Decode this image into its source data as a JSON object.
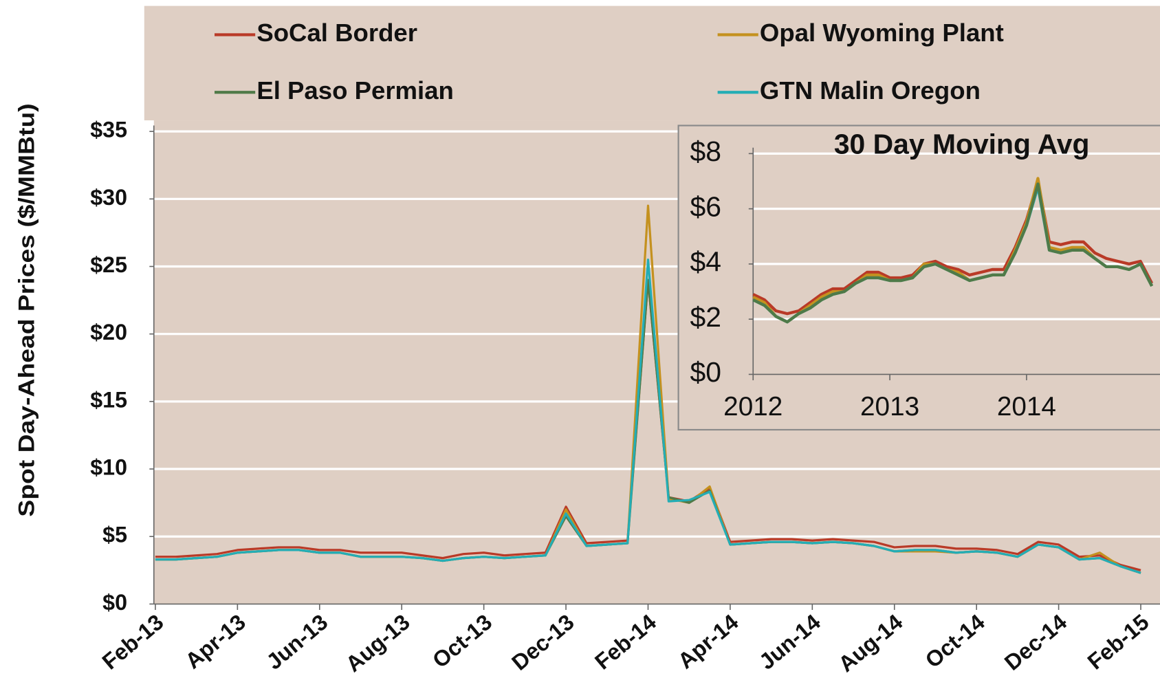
{
  "chart_data": [
    {
      "type": "line",
      "y_label": "Spot Day-Ahead Prices ($/MMBtu)",
      "categories": [
        "Feb-13",
        null,
        null,
        null,
        "Apr-13",
        null,
        null,
        null,
        "Jun-13",
        null,
        null,
        null,
        "Aug-13",
        null,
        null,
        null,
        "Oct-13",
        null,
        null,
        null,
        "Dec-13",
        null,
        null,
        null,
        "Feb-14",
        null,
        null,
        null,
        "Apr-14",
        null,
        null,
        null,
        "Jun-14",
        null,
        null,
        null,
        "Aug-14",
        null,
        null,
        null,
        "Oct-14",
        null,
        null,
        null,
        "Dec-14",
        null,
        null,
        null,
        "Feb-15"
      ],
      "ylim": [
        0,
        35
      ],
      "yticks": [
        {
          "value": 0,
          "label": "$0"
        },
        {
          "value": 5,
          "label": "$5"
        },
        {
          "value": 10,
          "label": "$10"
        },
        {
          "value": 15,
          "label": "$15"
        },
        {
          "value": 20,
          "label": "$20"
        },
        {
          "value": 25,
          "label": "$25"
        },
        {
          "value": 30,
          "label": "$30"
        },
        {
          "value": 35,
          "label": "$35"
        }
      ],
      "grid": true,
      "legend": "top",
      "series": [
        {
          "name": "SoCal Border",
          "color": "#b93a27",
          "values": [
            3.5,
            3.5,
            3.6,
            3.7,
            4.0,
            4.1,
            4.2,
            4.2,
            4.0,
            4.0,
            3.8,
            3.8,
            3.8,
            3.6,
            3.4,
            3.7,
            3.8,
            3.6,
            3.7,
            3.8,
            7.2,
            4.5,
            4.6,
            4.7,
            24.0,
            7.9,
            7.6,
            8.6,
            4.6,
            4.7,
            4.8,
            4.8,
            4.7,
            4.8,
            4.7,
            4.6,
            4.2,
            4.3,
            4.3,
            4.1,
            4.1,
            4.0,
            3.7,
            4.6,
            4.4,
            3.5,
            3.6,
            2.9,
            2.5
          ]
        },
        {
          "name": "Opal Wyoming Plant",
          "color": "#c4911f",
          "values": [
            3.3,
            3.3,
            3.4,
            3.5,
            3.8,
            3.9,
            4.0,
            4.0,
            3.8,
            3.8,
            3.5,
            3.5,
            3.5,
            3.4,
            3.2,
            3.4,
            3.5,
            3.4,
            3.5,
            3.6,
            7.0,
            4.3,
            4.4,
            4.5,
            29.5,
            7.8,
            7.5,
            8.7,
            4.4,
            4.5,
            4.6,
            4.6,
            4.5,
            4.6,
            4.5,
            4.3,
            3.9,
            3.9,
            3.9,
            3.8,
            3.9,
            3.8,
            3.5,
            4.4,
            4.2,
            3.3,
            3.8,
            2.8,
            2.3
          ]
        },
        {
          "name": "El Paso Permian",
          "color": "#4f7a48",
          "values": [
            3.3,
            3.3,
            3.4,
            3.5,
            3.8,
            3.9,
            4.0,
            4.0,
            3.8,
            3.8,
            3.5,
            3.5,
            3.5,
            3.4,
            3.2,
            3.4,
            3.5,
            3.4,
            3.5,
            3.6,
            6.5,
            4.3,
            4.4,
            4.5,
            24.0,
            7.9,
            7.5,
            8.4,
            4.4,
            4.5,
            4.6,
            4.6,
            4.5,
            4.6,
            4.5,
            4.3,
            3.9,
            4.0,
            4.0,
            3.8,
            3.9,
            3.8,
            3.5,
            4.4,
            4.2,
            3.3,
            3.4,
            2.8,
            2.3
          ]
        },
        {
          "name": "GTN Malin Oregon",
          "color": "#24adb5",
          "values": [
            3.3,
            3.3,
            3.4,
            3.5,
            3.8,
            3.9,
            4.0,
            4.0,
            3.8,
            3.8,
            3.5,
            3.5,
            3.5,
            3.4,
            3.2,
            3.4,
            3.5,
            3.4,
            3.5,
            3.6,
            6.7,
            4.3,
            4.4,
            4.5,
            25.5,
            7.6,
            7.7,
            8.3,
            4.4,
            4.5,
            4.6,
            4.6,
            4.5,
            4.6,
            4.5,
            4.3,
            3.9,
            4.0,
            4.0,
            3.8,
            3.9,
            3.8,
            3.5,
            4.4,
            4.2,
            3.3,
            3.4,
            2.8,
            2.3
          ]
        }
      ]
    },
    {
      "type": "line",
      "title": "30 Day Moving Avg",
      "categories": [
        "2012",
        null,
        null,
        null,
        null,
        null,
        null,
        null,
        null,
        null,
        null,
        null,
        "2013",
        null,
        null,
        null,
        null,
        null,
        null,
        null,
        null,
        null,
        null,
        null,
        "2014",
        null,
        null,
        null,
        null,
        null,
        null,
        null,
        null,
        null,
        null,
        null
      ],
      "ylim": [
        0,
        8
      ],
      "yticks": [
        {
          "value": 0,
          "label": "$0"
        },
        {
          "value": 2,
          "label": "$2"
        },
        {
          "value": 4,
          "label": "$4"
        },
        {
          "value": 6,
          "label": "$6"
        },
        {
          "value": 8,
          "label": "$8"
        }
      ],
      "grid": true,
      "series": [
        {
          "color": "#b93a27",
          "values": [
            2.9,
            2.7,
            2.3,
            2.2,
            2.3,
            2.6,
            2.9,
            3.1,
            3.1,
            3.4,
            3.7,
            3.7,
            3.5,
            3.5,
            3.6,
            4.0,
            4.1,
            3.9,
            3.8,
            3.6,
            3.7,
            3.8,
            3.8,
            4.6,
            5.6,
            7.0,
            4.8,
            4.7,
            4.8,
            4.8,
            4.4,
            4.2,
            4.1,
            4.0,
            4.1,
            3.3
          ]
        },
        {
          "color": "#c4911f",
          "values": [
            2.8,
            2.6,
            2.1,
            1.9,
            2.2,
            2.5,
            2.8,
            3.0,
            3.0,
            3.3,
            3.6,
            3.6,
            3.4,
            3.4,
            3.5,
            4.0,
            4.0,
            3.8,
            3.7,
            3.4,
            3.5,
            3.6,
            3.6,
            4.5,
            5.5,
            7.1,
            4.6,
            4.5,
            4.6,
            4.6,
            4.2,
            3.9,
            3.9,
            3.8,
            4.0,
            3.2
          ]
        },
        {
          "color": "#24adb5",
          "values": [
            2.7,
            2.5,
            2.1,
            1.9,
            2.2,
            2.4,
            2.7,
            2.9,
            3.0,
            3.3,
            3.5,
            3.5,
            3.4,
            3.4,
            3.5,
            3.9,
            4.0,
            3.8,
            3.6,
            3.4,
            3.5,
            3.6,
            3.6,
            4.4,
            5.4,
            6.8,
            4.5,
            4.4,
            4.5,
            4.5,
            4.2,
            3.9,
            3.9,
            3.8,
            4.0,
            3.2
          ]
        },
        {
          "color": "#4f7a48",
          "values": [
            2.7,
            2.5,
            2.1,
            1.9,
            2.2,
            2.4,
            2.7,
            2.9,
            3.0,
            3.3,
            3.5,
            3.5,
            3.4,
            3.4,
            3.5,
            3.9,
            4.0,
            3.8,
            3.6,
            3.4,
            3.5,
            3.6,
            3.6,
            4.4,
            5.4,
            6.9,
            4.5,
            4.4,
            4.5,
            4.5,
            4.2,
            3.9,
            3.9,
            3.8,
            4.0,
            3.2
          ]
        }
      ]
    }
  ]
}
